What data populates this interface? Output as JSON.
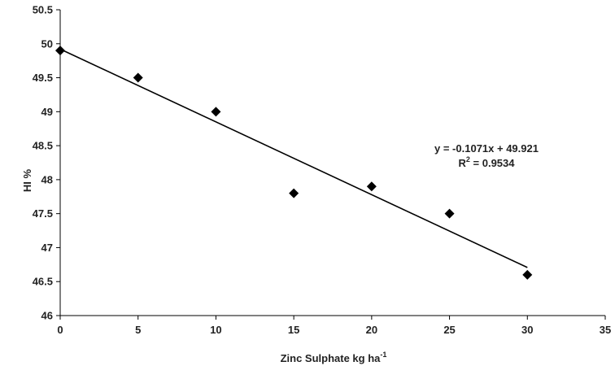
{
  "chart_data": {
    "type": "scatter",
    "title": "",
    "xlabel": {
      "text": "Zinc Sulphate kg ha",
      "sup": "-1"
    },
    "ylabel": "HI %",
    "xlim": [
      0,
      35
    ],
    "ylim": [
      46,
      50.5
    ],
    "xticks": [
      "0",
      "5",
      "10",
      "15",
      "20",
      "25",
      "30",
      "35"
    ],
    "yticks": [
      "46",
      "46.5",
      "47",
      "47.5",
      "48",
      "48.5",
      "49",
      "49.5",
      "50",
      "50.5"
    ],
    "grid": false,
    "legend": "none",
    "marker": "diamond",
    "marker_color": "#000000",
    "series": [
      {
        "x": [
          0,
          5,
          10,
          15,
          20,
          25,
          30
        ],
        "y": [
          49.9,
          49.5,
          49.0,
          47.8,
          47.9,
          47.5,
          46.6
        ]
      }
    ],
    "trendline": {
      "slope": -0.1071,
      "intercept": 49.921,
      "x_range": [
        0,
        30
      ],
      "color": "#000000"
    },
    "annotations": {
      "equation": "y = -0.1071x + 49.921",
      "r2_prefix": "R",
      "r2_sup": "2",
      "r2_suffix": " = 0.9534"
    }
  }
}
